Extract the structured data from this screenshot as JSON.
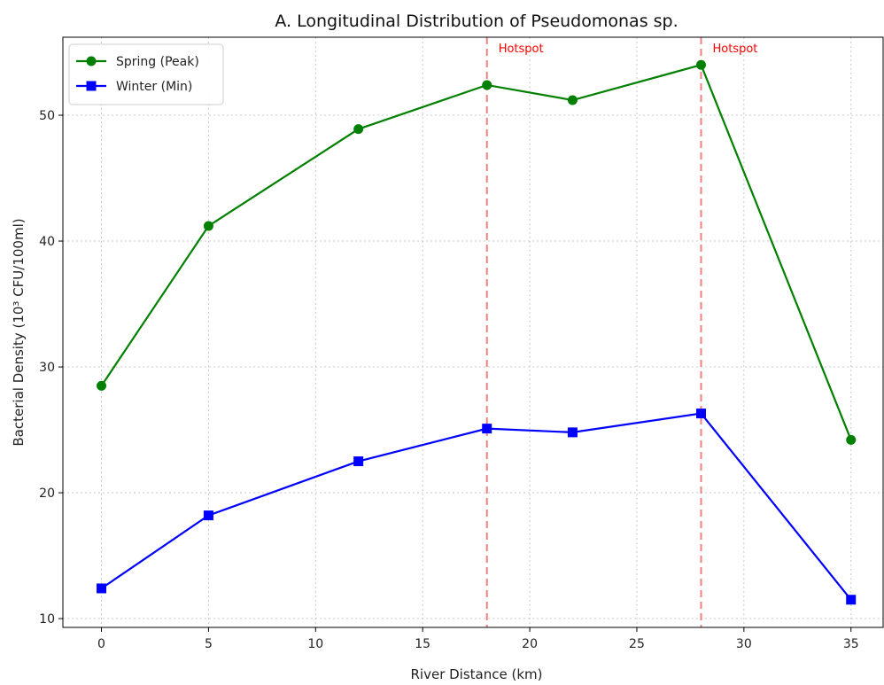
{
  "chart_data": {
    "type": "line",
    "title": "A. Longitudinal Distribution of Pseudomonas sp.",
    "xlabel": "River Distance (km)",
    "ylabel": "Bacterial Density (10³ CFU/100ml)",
    "x": [
      0,
      5,
      12,
      18,
      22,
      28,
      35
    ],
    "xlim": [
      -1.8,
      36.5
    ],
    "ylim": [
      9.3,
      56.2
    ],
    "xticks": [
      0,
      5,
      10,
      15,
      20,
      25,
      30,
      35
    ],
    "yticks": [
      10,
      20,
      30,
      40,
      50
    ],
    "grid": true,
    "legend_position": "top-left",
    "series": [
      {
        "name": "Spring (Peak)",
        "values": [
          28.5,
          41.2,
          48.9,
          52.4,
          51.2,
          54.0,
          24.2
        ],
        "color": "#008000",
        "marker": "circle"
      },
      {
        "name": "Winter (Min)",
        "values": [
          12.4,
          18.2,
          22.5,
          25.1,
          24.8,
          26.3,
          11.5
        ],
        "color": "#0000ff",
        "marker": "square"
      }
    ],
    "annotations": [
      {
        "x": 18,
        "label": "Hotspot",
        "color": "#ff0000",
        "line_color": "#f08080",
        "style": "dashed"
      },
      {
        "x": 28,
        "label": "Hotspot",
        "color": "#ff0000",
        "line_color": "#f08080",
        "style": "dashed"
      }
    ]
  }
}
